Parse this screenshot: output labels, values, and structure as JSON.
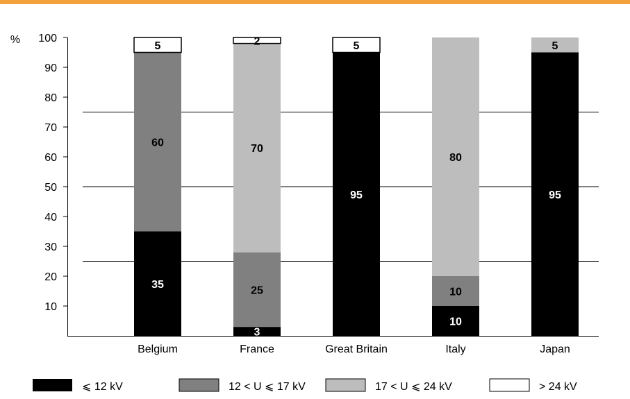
{
  "chart_data": {
    "type": "bar",
    "stacked": true,
    "ylabel": "%",
    "ylim": [
      0,
      100
    ],
    "yticks": [
      10,
      20,
      30,
      40,
      50,
      60,
      70,
      80,
      90,
      100
    ],
    "categories": [
      "Belgium",
      "France",
      "Great Britain",
      "Italy",
      "Japan"
    ],
    "series": [
      {
        "name": "⩽ 12 kV",
        "color": "#000000",
        "label_color": "#ffffff",
        "values": [
          35,
          3,
          95,
          10,
          95
        ]
      },
      {
        "name": "12 < U ⩽ 17 kV",
        "color": "#808080",
        "label_color": "#000000",
        "values": [
          60,
          25,
          0,
          10,
          0
        ]
      },
      {
        "name": "17 < U ⩽ 24 kV",
        "color": "#bdbdbd",
        "label_color": "#000000",
        "values": [
          0,
          70,
          0,
          80,
          5
        ]
      },
      {
        "name": "> 24 kV",
        "color": "#ffffff",
        "label_color": "#000000",
        "values": [
          5,
          2,
          5,
          0,
          0
        ]
      }
    ],
    "gridlines": [
      25,
      50,
      75
    ],
    "grid": "horizontal, at 25 / 50 / 75",
    "legend_position": "bottom",
    "header_rule_color": "#f2a23a"
  }
}
